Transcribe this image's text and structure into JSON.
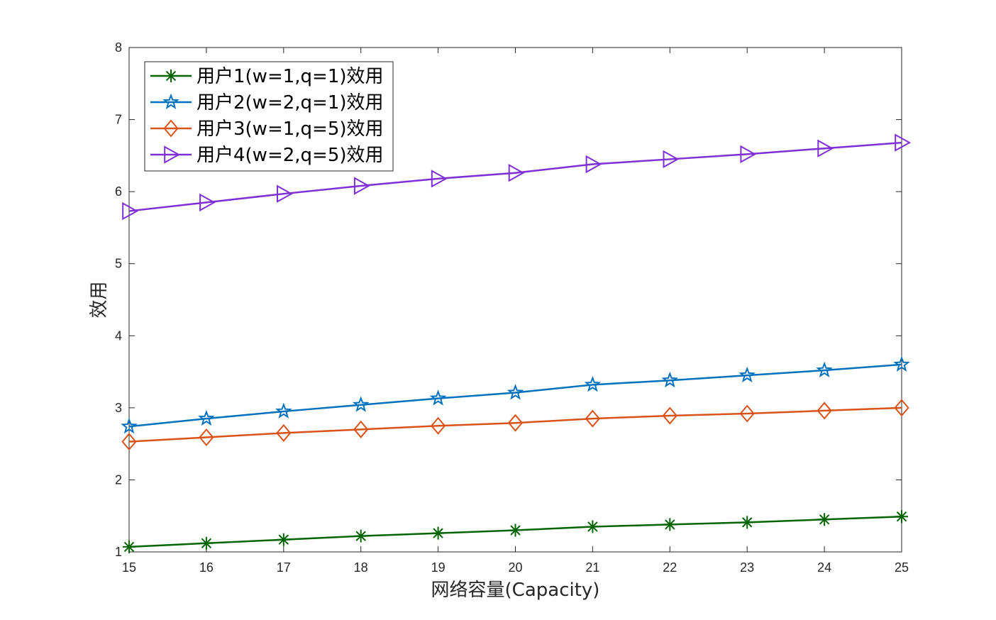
{
  "chart_data": {
    "type": "line",
    "title": "",
    "xlabel": "网络容量(Capacity)",
    "ylabel": "效用",
    "x": [
      15,
      16,
      17,
      18,
      19,
      20,
      21,
      22,
      23,
      24,
      25
    ],
    "xlim": [
      15,
      25
    ],
    "ylim": [
      1,
      8
    ],
    "xticks": [
      "15",
      "16",
      "17",
      "18",
      "19",
      "20",
      "21",
      "22",
      "23",
      "24",
      "25"
    ],
    "yticks": [
      "1",
      "2",
      "3",
      "4",
      "5",
      "6",
      "7",
      "8"
    ],
    "grid": false,
    "legend_position": "top-left",
    "series": [
      {
        "name": "用户1(w=1,q=1)效用",
        "color": "#006400",
        "marker": "asterisk",
        "values": [
          1.07,
          1.12,
          1.17,
          1.22,
          1.26,
          1.3,
          1.35,
          1.38,
          1.41,
          1.45,
          1.49
        ]
      },
      {
        "name": "用户2(w=2,q=1)效用",
        "color": "#0072BD",
        "marker": "star",
        "values": [
          2.74,
          2.85,
          2.95,
          3.04,
          3.13,
          3.21,
          3.32,
          3.38,
          3.45,
          3.52,
          3.6
        ]
      },
      {
        "name": "用户3(w=1,q=5)效用",
        "color": "#D95319",
        "marker": "diamond",
        "values": [
          2.53,
          2.59,
          2.65,
          2.7,
          2.75,
          2.79,
          2.85,
          2.89,
          2.92,
          2.96,
          3.0
        ]
      },
      {
        "name": "用户4(w=2,q=5)效用",
        "color": "#7E2FD6",
        "marker": "triangle-right",
        "values": [
          5.73,
          5.85,
          5.97,
          6.08,
          6.18,
          6.26,
          6.38,
          6.45,
          6.52,
          6.6,
          6.68
        ]
      }
    ]
  }
}
